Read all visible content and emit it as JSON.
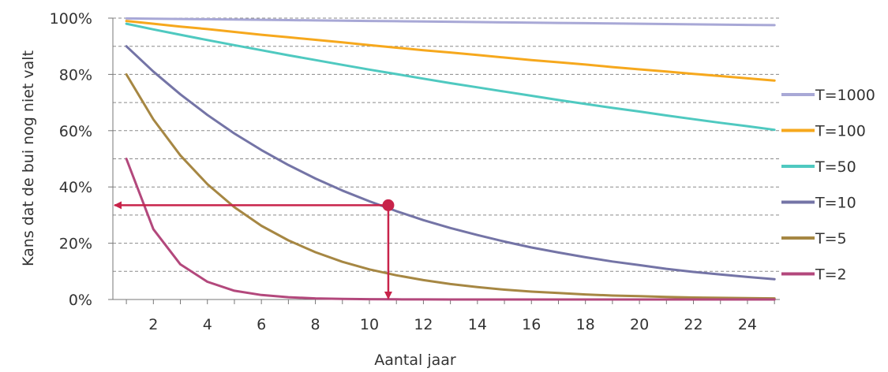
{
  "chart_data": {
    "type": "line",
    "title": "",
    "xlabel": "Aantal jaar",
    "ylabel": "Kans dat de bui nog niet valt",
    "xlim": [
      0.5,
      25.2
    ],
    "ylim": [
      0,
      100
    ],
    "x_ticks": [
      2,
      4,
      6,
      8,
      10,
      12,
      14,
      16,
      18,
      20,
      22,
      24
    ],
    "x_tick_labels": [
      "2",
      "4",
      "6",
      "8",
      "10",
      "12",
      "14",
      "16",
      "18",
      "20",
      "22",
      "24"
    ],
    "y_ticks": [
      0,
      20,
      40,
      60,
      80,
      100
    ],
    "y_tick_labels": [
      "0%",
      "20%",
      "40%",
      "60%",
      "80%",
      "100%"
    ],
    "grid": "horizontal dashed, every 10%",
    "legend_position": "right",
    "x": [
      1,
      2,
      3,
      4,
      5,
      6,
      7,
      8,
      9,
      10,
      11,
      12,
      13,
      14,
      15,
      16,
      17,
      18,
      19,
      20,
      21,
      22,
      23,
      24,
      25
    ],
    "series": [
      {
        "name": "T=1000",
        "color": "#a8a8d6",
        "values": [
          99.9,
          99.8,
          99.7,
          99.6,
          99.5,
          99.4,
          99.3,
          99.2,
          99.1,
          99.0,
          98.9,
          98.8,
          98.7,
          98.6,
          98.5,
          98.4,
          98.3,
          98.2,
          98.1,
          98.0,
          97.9,
          97.8,
          97.7,
          97.6,
          97.5
        ]
      },
      {
        "name": "T=100",
        "color": "#f6a81d",
        "values": [
          99.0,
          98.0,
          97.0,
          96.1,
          95.1,
          94.1,
          93.2,
          92.3,
          91.4,
          90.4,
          89.5,
          88.6,
          87.8,
          86.9,
          86.0,
          85.1,
          84.3,
          83.5,
          82.6,
          81.8,
          81.0,
          80.2,
          79.4,
          78.6,
          77.8
        ]
      },
      {
        "name": "T=50",
        "color": "#4fc9c0",
        "values": [
          98.0,
          96.0,
          94.1,
          92.2,
          90.4,
          88.6,
          86.8,
          85.1,
          83.4,
          81.7,
          80.1,
          78.5,
          76.9,
          75.4,
          73.9,
          72.4,
          70.9,
          69.5,
          68.1,
          66.8,
          65.4,
          64.1,
          62.8,
          61.6,
          60.3
        ]
      },
      {
        "name": "T=10",
        "color": "#7474a6",
        "values": [
          90.0,
          81.0,
          72.9,
          65.6,
          59.0,
          53.1,
          47.8,
          43.0,
          38.7,
          34.9,
          31.4,
          28.2,
          25.4,
          22.9,
          20.6,
          18.5,
          16.7,
          15.0,
          13.5,
          12.2,
          10.9,
          9.8,
          8.9,
          8.0,
          7.2
        ]
      },
      {
        "name": "T=5",
        "color": "#a68743",
        "values": [
          80.0,
          64.0,
          51.2,
          41.0,
          32.8,
          26.2,
          21.0,
          16.8,
          13.4,
          10.7,
          8.6,
          6.9,
          5.5,
          4.4,
          3.5,
          2.8,
          2.3,
          1.8,
          1.4,
          1.2,
          0.9,
          0.7,
          0.6,
          0.5,
          0.4
        ]
      },
      {
        "name": "T=2",
        "color": "#b3487c",
        "values": [
          50.0,
          25.0,
          12.5,
          6.3,
          3.1,
          1.6,
          0.8,
          0.4,
          0.2,
          0.1,
          0.05,
          0.02,
          0.01,
          0.0,
          0.0,
          0.0,
          0.0,
          0.0,
          0.0,
          0.0,
          0.0,
          0.0,
          0.0,
          0.0,
          0.0
        ]
      }
    ],
    "annotation": {
      "type": "marker-with-arrows",
      "color": "#c8234a",
      "point": {
        "x": 10.7,
        "y": 33.5
      },
      "arrow_to_y_axis": true,
      "arrow_to_x_axis": true
    }
  }
}
